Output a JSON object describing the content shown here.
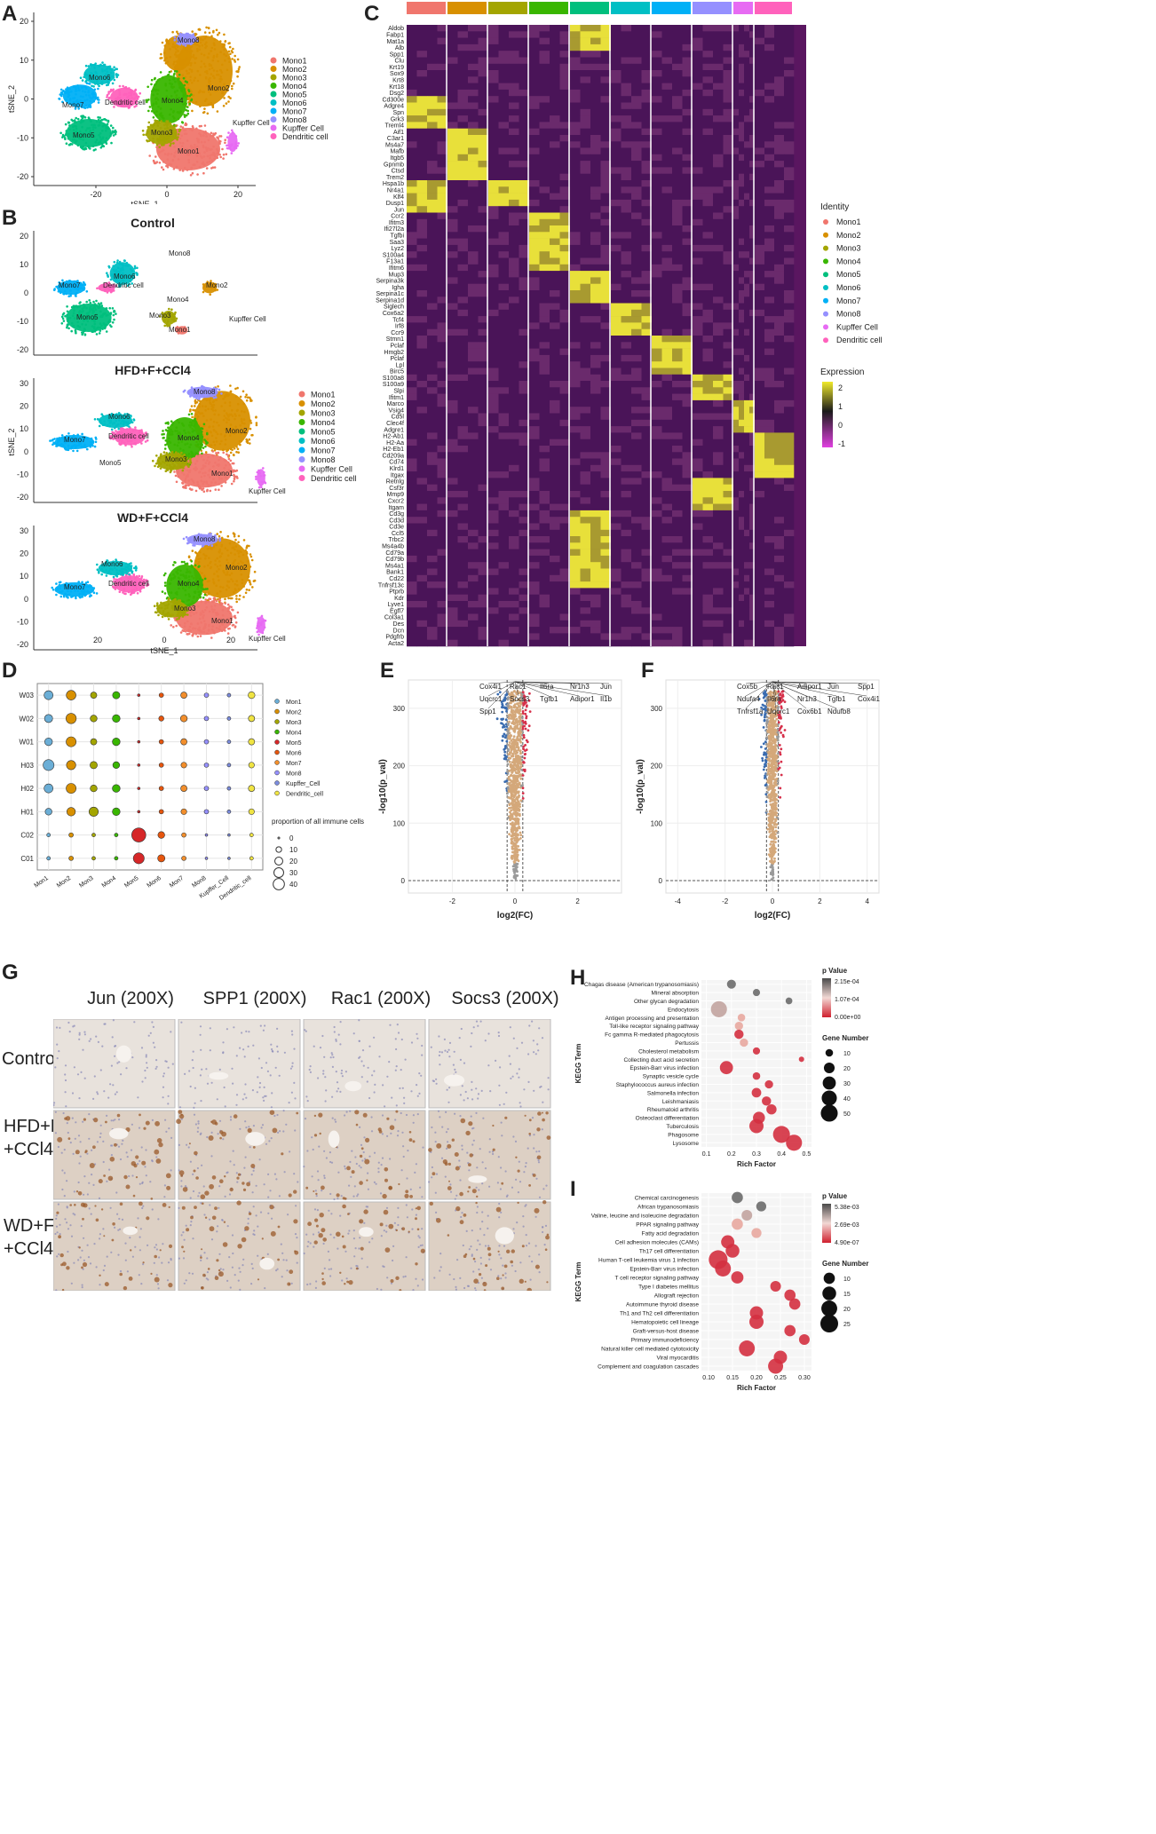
{
  "panel_letters": {
    "a": "A",
    "b": "B",
    "c": "C",
    "d": "D",
    "e": "E",
    "f": "F",
    "g": "G",
    "h": "H",
    "i": "I"
  },
  "colors": {
    "Mono1": "#F0766D",
    "Mono2": "#D89000",
    "Mono3": "#A3A500",
    "Mono4": "#39B600",
    "Mono5": "#00BF7D",
    "Mono6": "#00BFC4",
    "Mono7": "#00B0F6",
    "Mono8": "#9590FF",
    "Kupffer Cell": "#E76BF3",
    "Dendritic cell": "#FF62BC"
  },
  "legend_entries": [
    "Mono1",
    "Mono2",
    "Mono3",
    "Mono4",
    "Mono5",
    "Mono6",
    "Mono7",
    "Mono8",
    "Kupffer Cell",
    "Dendritic cell"
  ],
  "panel_a": {
    "xlabel": "tSNE_1",
    "ylabel": "tSNE_2",
    "xticks": [
      "-20",
      "0",
      "20"
    ],
    "yticks": [
      "20",
      "10",
      "0",
      "-10",
      "-20"
    ],
    "cluster_labels": [
      "Mono8",
      "Mono6",
      "Mono2",
      "Mono7",
      "Dendritic cell",
      "Mono4",
      "Mono3",
      "Mono5",
      "Mono1",
      "Kupffer Cell"
    ]
  },
  "panel_b": {
    "titles": [
      "Control",
      "HFD+F+CCl4",
      "WD+F+CCl4"
    ],
    "xlabel": "tSNE_1",
    "ylabel": "tSNE_2",
    "xticks": [
      "20",
      "0",
      "20"
    ],
    "yticks": [
      "30",
      "20",
      "10",
      "0",
      "-10",
      "-20"
    ],
    "control_labels": [
      "Mono8",
      "Mono7",
      "Dendritic cell",
      "Mono6",
      "Mono2",
      "Mono4",
      "Mono5",
      "Mono3",
      "Mono1",
      "Kupffer Cell"
    ],
    "hfd_labels": [
      "Mono8",
      "Mono6",
      "Mono7",
      "Dendritic cell",
      "Mono4",
      "Mono2",
      "Mono5",
      "Mono3",
      "Mono1",
      "Kupffer Cell"
    ],
    "wd_labels": [
      "Mono8",
      "Mono6",
      "Mono2",
      "Mono7",
      "Dendritic cell",
      "Mono4",
      "Mono3",
      "Mono1",
      "Kupffer Cell"
    ]
  },
  "panel_c": {
    "genes": [
      "Aldob",
      "Fabp1",
      "Mat1a",
      "Alb",
      "Spp1",
      "Clu",
      "Krt19",
      "Sox9",
      "Krt8",
      "Krt18",
      "Dsg2",
      "Cd300e",
      "Adgre4",
      "Spn",
      "Grk3",
      "Treml4",
      "Aif1",
      "C3ar1",
      "Ms4a7",
      "Mafb",
      "Itgb5",
      "Gpnmb",
      "Ctsd",
      "Trem2",
      "Hspa1b",
      "Nr4a1",
      "Klf4",
      "Dusp1",
      "Jun",
      "Ccr2",
      "Ifitm3",
      "Ifi27l2a",
      "Tgfbi",
      "Saa3",
      "Lyz2",
      "S100a4",
      "F13a1",
      "Ifitm6",
      "Mup3",
      "Serpina3k",
      "Igha",
      "Serpina1c",
      "Serpina1d",
      "Siglech",
      "Cox6a2",
      "Tcf4",
      "Irf8",
      "Ccr9",
      "Stmn1",
      "Pclaf",
      "Hmgb2",
      "Pclaf",
      "Lpl",
      "Birc5",
      "S100a8",
      "S100a9",
      "Slpi",
      "Ifitm1",
      "Marco",
      "Vsig4",
      "Cd5l",
      "Clec4f",
      "Adgre1",
      "H2-Ab1",
      "H2-Aa",
      "H2-Eb1",
      "Cd209a",
      "Cd74",
      "Klrd1",
      "Itgax",
      "Retnlg",
      "Csf3r",
      "Mmp9",
      "Cxcr2",
      "Itgam",
      "Cd3g",
      "Cd3d",
      "Cd3e",
      "Ccl5",
      "Trbc2",
      "Ms4a4b",
      "Cd79a",
      "Cd79b",
      "Ms4a1",
      "Bank1",
      "Cd22",
      "Tnfrsf13c",
      "Ptprb",
      "Kdr",
      "Lyve1",
      "Egfl7",
      "Col3a1",
      "Des",
      "Dcn",
      "Pdgfrb",
      "Acta2"
    ],
    "identity_title": "Identity",
    "expression_title": "Expression",
    "expression_ticks": [
      "2",
      "1",
      "0",
      "-1"
    ]
  },
  "panel_d": {
    "rows": [
      "W03",
      "W02",
      "W01",
      "H03",
      "H02",
      "H01",
      "C02",
      "C01"
    ],
    "cols": [
      "Mon1",
      "Mon2",
      "Mon3",
      "Mon4",
      "Mon5",
      "Mon6",
      "Mon7",
      "Mon8",
      "Kupffer_Cell",
      "Dendritic_cell"
    ],
    "legend_entries": [
      "Mon1",
      "Mon2",
      "Mon3",
      "Mon4",
      "Mon5",
      "Mon6",
      "Mon7",
      "Mon8",
      "Kupffer_Cell",
      "Dendritic_cell"
    ],
    "size_title": "proportion of all immune cells",
    "size_ticks": [
      "0",
      "10",
      "20",
      "30",
      "40"
    ],
    "values": [
      [
        12,
        14,
        6,
        8,
        1,
        3,
        6,
        3,
        2,
        7
      ],
      [
        10,
        16,
        7,
        9,
        1,
        4,
        7,
        3,
        2,
        6
      ],
      [
        9,
        15,
        6,
        9,
        1,
        3,
        6,
        3,
        2,
        6
      ],
      [
        18,
        13,
        8,
        7,
        1,
        3,
        5,
        3,
        2,
        5
      ],
      [
        12,
        15,
        7,
        9,
        1,
        3,
        6,
        3,
        2,
        6
      ],
      [
        7,
        11,
        13,
        9,
        1,
        3,
        5,
        3,
        2,
        5
      ],
      [
        2,
        3,
        2,
        2,
        30,
        7,
        3,
        1,
        1,
        2
      ],
      [
        2,
        3,
        2,
        2,
        18,
        8,
        3,
        1,
        1,
        2
      ]
    ]
  },
  "panel_e": {
    "xlabel": "log2(FC)",
    "ylabel": "-log10(p_val)",
    "xticks": [
      "-2",
      "0",
      "2"
    ],
    "yticks": [
      "300",
      "200",
      "100",
      "0"
    ],
    "genes": [
      "Cox4i1",
      "Rac1",
      "Il6ra",
      "Nr1h3",
      "Jun",
      "Uqcrc1",
      "Socs3",
      "Tgfb1",
      "Adipor1",
      "Il1b",
      "Spp1"
    ]
  },
  "panel_f": {
    "xlabel": "log2(FC)",
    "ylabel": "-log10(p_val)",
    "xticks": [
      "-4",
      "-2",
      "0",
      "2",
      "4"
    ],
    "yticks": [
      "300",
      "200",
      "100",
      "0"
    ],
    "genes": [
      "Cox5b",
      "Rac1",
      "Adipor1",
      "Jun",
      "Spp1",
      "Ndufa4",
      "Il6ra",
      "Nr1h3",
      "Tgfb1",
      "Cox4i1",
      "Tnfrsf1a",
      "Uqcrc1",
      "Cox6b1",
      "Ndufb8"
    ]
  },
  "panel_g": {
    "columns": [
      "Jun (200X)",
      "SPP1 (200X)",
      "Rac1 (200X)",
      "Socs3 (200X)"
    ],
    "rows": [
      "Control",
      "HFD+F\n+CCl4",
      "WD+F\n+CCl4"
    ],
    "row_line1": [
      "Control",
      "HFD+F",
      "WD+F"
    ],
    "row_line2": [
      "",
      "+CCl4",
      "+CCl4"
    ]
  },
  "panel_h": {
    "ylabel": "KEGG Term",
    "xlabel": "Rich Factor",
    "xticks": [
      "0.1",
      "0.2",
      "0.3",
      "0.4",
      "0.5"
    ],
    "pvalue_title": "p Value",
    "pvalue_ticks": [
      "2.15e-04",
      "1.07e-04",
      "0.00e+00"
    ],
    "gene_title": "Gene Number",
    "gene_ticks": [
      "10",
      "20",
      "30",
      "40",
      "50"
    ],
    "terms": [
      "Chagas disease (American trypanosomiasis)",
      "Mineral absorption",
      "Other glycan degradation",
      "Endocytosis",
      "Antigen processing and presentation",
      "Toll-like receptor signaling pathway",
      "Fc gamma R-mediated phagocytosis",
      "Pertussis",
      "Cholesterol metabolism",
      "Collecting duct acid secretion",
      "Epstein-Barr virus infection",
      "Synaptic vesicle cycle",
      "Staphylococcus aureus infection",
      "Salmonella infection",
      "Leishmaniasis",
      "Rheumatoid arthritis",
      "Osteoclast differentiation",
      "Tuberculosis",
      "Phagosome",
      "Lysosome"
    ],
    "rich": [
      0.2,
      0.3,
      0.43,
      0.15,
      0.24,
      0.23,
      0.23,
      0.25,
      0.3,
      0.48,
      0.18,
      0.3,
      0.35,
      0.3,
      0.34,
      0.36,
      0.31,
      0.3,
      0.4,
      0.45
    ],
    "genes": [
      14,
      9,
      8,
      45,
      10,
      12,
      15,
      12,
      9,
      5,
      30,
      10,
      12,
      16,
      15,
      18,
      25,
      35,
      50,
      45
    ],
    "pval": [
      0.00021,
      0.00018,
      0.00019,
      0.00014,
      6e-05,
      5e-05,
      4e-05,
      5e-05,
      3e-05,
      2e-05,
      1e-06,
      1e-06,
      1e-06,
      1e-06,
      1e-06,
      1e-06,
      1e-07,
      1e-08,
      1e-09,
      1e-09
    ]
  },
  "panel_i": {
    "ylabel": "KEGG Term",
    "xlabel": "Rich Factor",
    "xticks": [
      "0.10",
      "0.15",
      "0.20",
      "0.25",
      "0.30"
    ],
    "pvalue_title": "p Value",
    "pvalue_ticks": [
      "5.38e-03",
      "2.69e-03",
      "4.90e-07"
    ],
    "gene_title": "Gene Number",
    "gene_ticks": [
      "10",
      "15",
      "20",
      "25"
    ],
    "terms": [
      "Chemical carcinogenesis",
      "African trypanosomiasis",
      "Valine, leucine and isoleucine degradation",
      "PPAR signaling pathway",
      "Fatty acid degradation",
      "Cell adhesion molecules (CAMs)",
      "Th17 cell differentiation",
      "Human T-cell leukemia virus 1 infection",
      "Epstein-Barr virus infection",
      "T cell receptor signaling pathway",
      "Type I diabetes mellitus",
      "Allograft rejection",
      "Autoimmune thyroid disease",
      "Th1 and Th2 cell differentiation",
      "Hematopoietic cell lineage",
      "Graft-versus-host disease",
      "Primary immunodeficiency",
      "Natural killer cell mediated cytotoxicity",
      "Viral myocarditis",
      "Complement and coagulation cascades"
    ],
    "rich": [
      0.16,
      0.21,
      0.18,
      0.16,
      0.2,
      0.14,
      0.15,
      0.12,
      0.13,
      0.16,
      0.24,
      0.27,
      0.28,
      0.2,
      0.2,
      0.27,
      0.3,
      0.18,
      0.25,
      0.24
    ],
    "genes": [
      10,
      8,
      9,
      10,
      8,
      14,
      15,
      28,
      20,
      12,
      9,
      10,
      10,
      14,
      16,
      10,
      9,
      20,
      14,
      18
    ],
    "pval": [
      0.005,
      0.0048,
      0.0035,
      0.002,
      0.0015,
      0.001,
      0.0008,
      5e-05,
      1e-05,
      0.0005,
      0.0001,
      0.0001,
      0.0001,
      1e-05,
      1e-05,
      1e-05,
      1e-05,
      1e-06,
      1e-06,
      5e-07
    ]
  }
}
